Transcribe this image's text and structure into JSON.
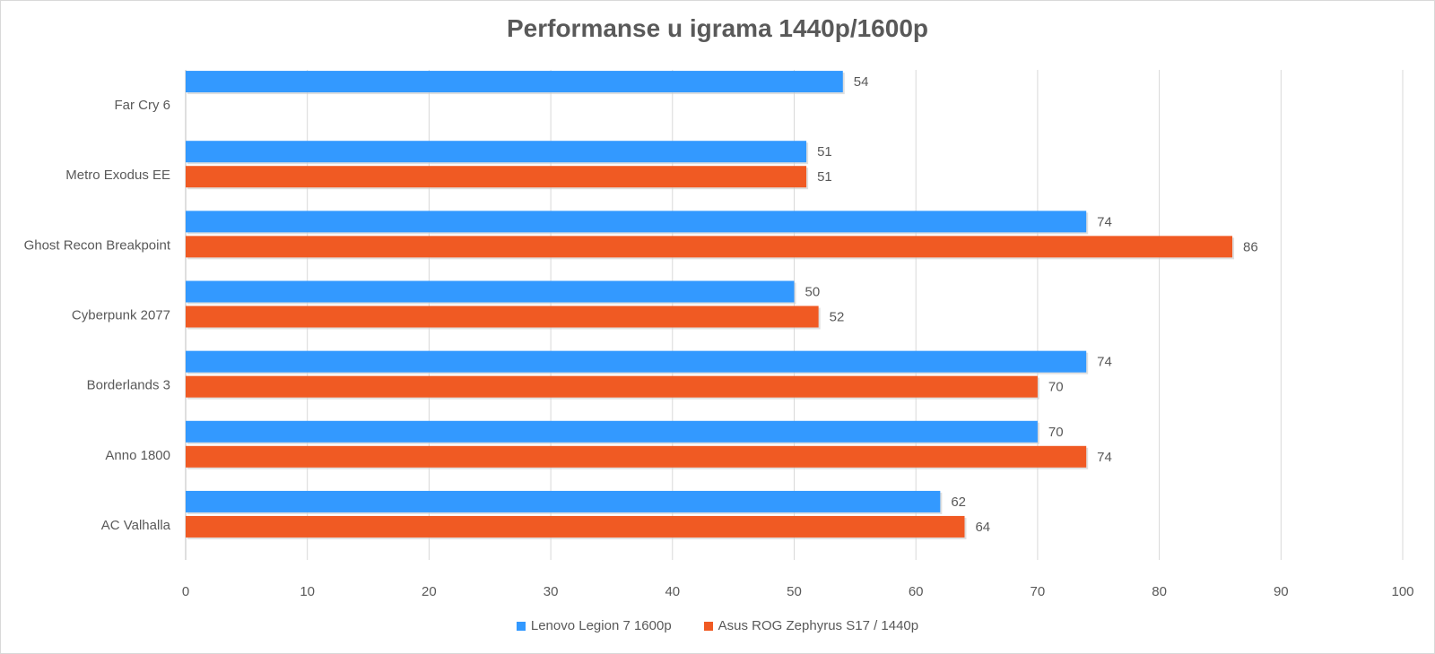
{
  "chart_data": {
    "type": "bar",
    "orientation": "horizontal",
    "title": "Performanse u igrama 1440p/1600p",
    "categories": [
      "Far Cry 6",
      "Metro Exodus EE",
      "Ghost Recon Breakpoint",
      "Cyberpunk 2077",
      "Borderlands 3",
      "Anno 1800",
      "AC Valhalla"
    ],
    "series": [
      {
        "name": "Lenovo Legion 7 1600p",
        "color": "#3399ff",
        "values": [
          54,
          51,
          74,
          50,
          74,
          70,
          62
        ]
      },
      {
        "name": "Asus ROG Zephyrus S17 / 1440p",
        "color": "#f05a23",
        "values": [
          null,
          51,
          86,
          52,
          70,
          74,
          64
        ]
      }
    ],
    "xlim": [
      0,
      100
    ],
    "xticks": [
      0,
      10,
      20,
      30,
      40,
      50,
      60,
      70,
      80,
      90,
      100
    ],
    "grid": true,
    "data_labels": true,
    "legend_position": "bottom"
  }
}
